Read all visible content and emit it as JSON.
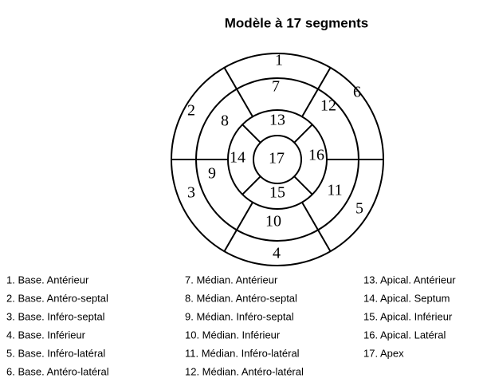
{
  "title": "Modèle à 17 segments",
  "segments": [
    "1",
    "2",
    "3",
    "4",
    "5",
    "6",
    "7",
    "8",
    "9",
    "10",
    "11",
    "12",
    "13",
    "14",
    "15",
    "16",
    "17"
  ],
  "legend": [
    [
      "1. Base. Antérieur",
      "2. Base. Antéro-septal",
      "3. Base. Inféro-septal",
      "4. Base. Inférieur",
      "5. Base. Inféro-latéral",
      "6. Base. Antéro-latéral"
    ],
    [
      "7. Médian. Antérieur",
      "8. Médian. Antéro-septal",
      "9. Médian. Inféro-septal",
      "10. Médian. Inférieur",
      "11. Médian. Inféro-latéral",
      "12. Médian. Antéro-latéral"
    ],
    [
      "13. Apical. Antérieur",
      "14. Apical. Septum",
      "15. Apical. Inférieur",
      "16. Apical. Latéral",
      "17. Apex"
    ]
  ]
}
